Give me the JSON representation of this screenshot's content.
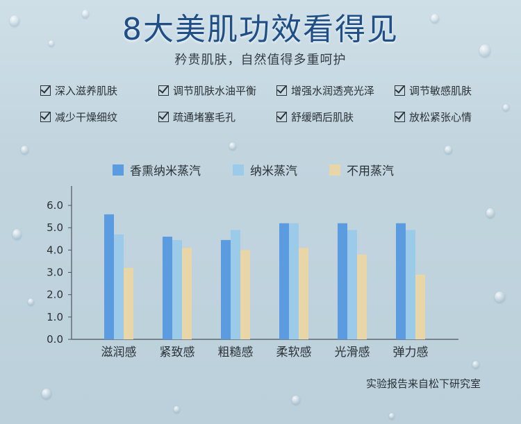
{
  "header": {
    "title": "8大美肌功效看得见",
    "subtitle": "矜贵肌肤，自然值得多重呵护"
  },
  "benefits": [
    [
      "深入滋养肌肤",
      "调节肌肤水油平衡",
      "增强水润透亮光泽",
      "调节敏感肌肤"
    ],
    [
      "减少干燥细纹",
      "疏通堵塞毛孔",
      "舒缓晒后肌肤",
      "放松紧张心情"
    ]
  ],
  "colors": {
    "series1": "#5b9be0",
    "series2": "#9ccbea",
    "series3": "#e8d5a8",
    "title": "#1f4f86"
  },
  "chart_data": {
    "type": "bar",
    "categories": [
      "滋润感",
      "紧致感",
      "粗糙感",
      "柔软感",
      "光滑感",
      "弹力感"
    ],
    "series": [
      {
        "name": "香熏纳米蒸汽",
        "values": [
          5.6,
          4.6,
          4.45,
          5.2,
          5.2,
          5.2
        ]
      },
      {
        "name": "纳米蒸汽",
        "values": [
          4.7,
          4.45,
          4.9,
          5.2,
          4.9,
          4.9
        ]
      },
      {
        "name": "不用蒸汽",
        "values": [
          3.2,
          4.1,
          4.0,
          4.1,
          3.8,
          2.9
        ]
      }
    ],
    "yticks": [
      "0.0",
      "1.0",
      "2.0",
      "3.0",
      "4.0",
      "5.0",
      "6.0"
    ],
    "ylim": [
      0,
      6.5
    ],
    "grid": false,
    "legend": "top"
  },
  "footer": {
    "source": "实验报告来自松下研究室"
  }
}
